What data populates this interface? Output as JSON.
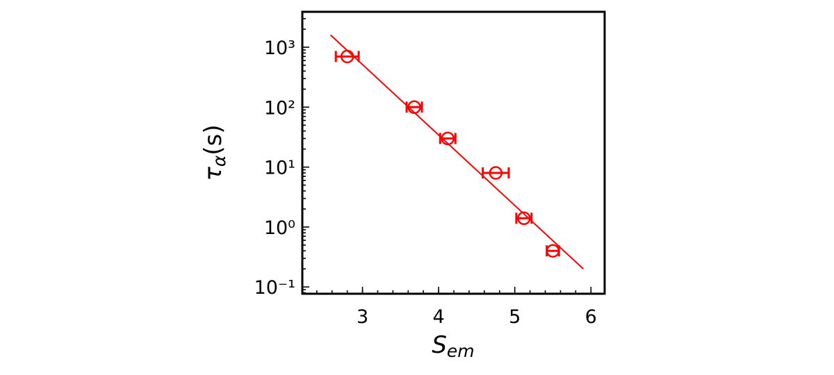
{
  "chart_data": {
    "type": "scatter",
    "xlabel": {
      "text": "S",
      "subscript": "em"
    },
    "ylabel": {
      "text": "τ",
      "subscript": "α",
      "suffix": "(s)"
    },
    "xlim": [
      2.21,
      6.18
    ],
    "xticks": [
      3,
      4,
      5,
      6
    ],
    "ylim": [
      0.077,
      3900
    ],
    "log_y": true,
    "yticks": [
      {
        "value": 0.1,
        "label": "10⁻¹"
      },
      {
        "value": 1,
        "label": "10⁰"
      },
      {
        "value": 10,
        "label": "10¹"
      },
      {
        "value": 100,
        "label": "10²"
      },
      {
        "value": 1000,
        "label": "10³"
      }
    ],
    "series": [
      {
        "color": "#ff0000",
        "marker": "open-circle",
        "x": [
          2.8,
          3.68,
          4.12,
          4.75,
          5.12,
          5.5
        ],
        "xerr": [
          0.15,
          0.1,
          0.1,
          0.17,
          0.1,
          0.08
        ],
        "values": [
          700,
          100,
          30,
          8,
          1.4,
          0.4
        ]
      },
      {
        "color": "#ff0000",
        "marker": "line",
        "x": [
          2.58,
          5.9
        ],
        "values": [
          1600,
          0.2
        ]
      }
    ]
  }
}
